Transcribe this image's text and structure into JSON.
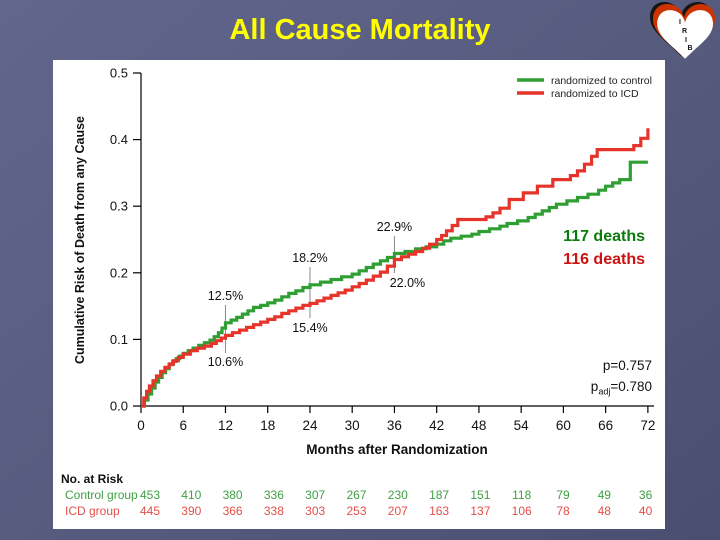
{
  "slide": {
    "title": "All Cause Mortality"
  },
  "logo": {
    "letters": [
      "I",
      "R",
      "I",
      "B"
    ]
  },
  "chart_data": {
    "type": "line",
    "subtype": "kaplan-meier-step",
    "title": "",
    "xlabel": "Months after Randomization",
    "ylabel": "Cumulative Risk of Death from any Cause",
    "xlim": [
      0,
      72
    ],
    "ylim": [
      0,
      0.5
    ],
    "xticks": [
      0,
      6,
      12,
      18,
      24,
      30,
      36,
      42,
      48,
      54,
      60,
      66,
      72
    ],
    "ytick_values": [
      0,
      0.1,
      0.2,
      0.3,
      0.4,
      0.5
    ],
    "ytick_labels": [
      "0.0",
      "0.1",
      "0.2",
      "0.3",
      "0.4",
      "0.5"
    ],
    "grid": false,
    "legend": {
      "position": "top-right",
      "items": [
        {
          "label": "randomized to control",
          "color": "#2f9e33"
        },
        {
          "label": "randomized to ICD",
          "color": "#e6342b"
        }
      ]
    },
    "series": [
      {
        "name": "randomized to control",
        "color": "#2f9e33",
        "points": [
          [
            0,
            0
          ],
          [
            0.5,
            0.009
          ],
          [
            1,
            0.018
          ],
          [
            1.5,
            0.027
          ],
          [
            2,
            0.036
          ],
          [
            2.5,
            0.043
          ],
          [
            3,
            0.05
          ],
          [
            3.5,
            0.056
          ],
          [
            4,
            0.062
          ],
          [
            4.5,
            0.067
          ],
          [
            5,
            0.071
          ],
          [
            5.5,
            0.075
          ],
          [
            6,
            0.079
          ],
          [
            6.7,
            0.083
          ],
          [
            7.4,
            0.087
          ],
          [
            8.2,
            0.091
          ],
          [
            9,
            0.095
          ],
          [
            9.8,
            0.099
          ],
          [
            10.4,
            0.104
          ],
          [
            11,
            0.11
          ],
          [
            11.5,
            0.117
          ],
          [
            12,
            0.125
          ],
          [
            12.8,
            0.129
          ],
          [
            13.6,
            0.133
          ],
          [
            14.4,
            0.138
          ],
          [
            15.2,
            0.143
          ],
          [
            16,
            0.148
          ],
          [
            17,
            0.151
          ],
          [
            18,
            0.155
          ],
          [
            19,
            0.159
          ],
          [
            20,
            0.164
          ],
          [
            21,
            0.169
          ],
          [
            22,
            0.173
          ],
          [
            23,
            0.178
          ],
          [
            24,
            0.182
          ],
          [
            25.5,
            0.186
          ],
          [
            27,
            0.19
          ],
          [
            28.5,
            0.194
          ],
          [
            30,
            0.198
          ],
          [
            31,
            0.203
          ],
          [
            32,
            0.208
          ],
          [
            33,
            0.213
          ],
          [
            34,
            0.218
          ],
          [
            35,
            0.223
          ],
          [
            36,
            0.229
          ],
          [
            37.5,
            0.232
          ],
          [
            39,
            0.236
          ],
          [
            40.5,
            0.239
          ],
          [
            42,
            0.243
          ],
          [
            43,
            0.248
          ],
          [
            44,
            0.252
          ],
          [
            45.5,
            0.255
          ],
          [
            47,
            0.258
          ],
          [
            48,
            0.262
          ],
          [
            49.5,
            0.266
          ],
          [
            51,
            0.27
          ],
          [
            52,
            0.274
          ],
          [
            53.5,
            0.278
          ],
          [
            55,
            0.283
          ],
          [
            56,
            0.288
          ],
          [
            57,
            0.293
          ],
          [
            58,
            0.298
          ],
          [
            59,
            0.303
          ],
          [
            60.5,
            0.308
          ],
          [
            62,
            0.313
          ],
          [
            63.5,
            0.318
          ],
          [
            65,
            0.324
          ],
          [
            66,
            0.33
          ],
          [
            67,
            0.335
          ],
          [
            68,
            0.34
          ],
          [
            69.5,
            0.366
          ],
          [
            72,
            0.366
          ]
        ]
      },
      {
        "name": "randomized to ICD",
        "color": "#e6342b",
        "points": [
          [
            0,
            0
          ],
          [
            0.4,
            0.012
          ],
          [
            0.8,
            0.022
          ],
          [
            1.2,
            0.03
          ],
          [
            1.7,
            0.038
          ],
          [
            2.2,
            0.045
          ],
          [
            2.8,
            0.052
          ],
          [
            3.4,
            0.058
          ],
          [
            4,
            0.063
          ],
          [
            4.6,
            0.068
          ],
          [
            5.3,
            0.073
          ],
          [
            6,
            0.078
          ],
          [
            7,
            0.083
          ],
          [
            8,
            0.087
          ],
          [
            9,
            0.09
          ],
          [
            10,
            0.094
          ],
          [
            10.7,
            0.098
          ],
          [
            11.4,
            0.102
          ],
          [
            12,
            0.106
          ],
          [
            13,
            0.11
          ],
          [
            14,
            0.114
          ],
          [
            15,
            0.118
          ],
          [
            16,
            0.122
          ],
          [
            17,
            0.126
          ],
          [
            18,
            0.13
          ],
          [
            19,
            0.134
          ],
          [
            20,
            0.139
          ],
          [
            21,
            0.143
          ],
          [
            22,
            0.147
          ],
          [
            23,
            0.151
          ],
          [
            24,
            0.154
          ],
          [
            25,
            0.158
          ],
          [
            26,
            0.162
          ],
          [
            27,
            0.166
          ],
          [
            28,
            0.17
          ],
          [
            29,
            0.174
          ],
          [
            30,
            0.179
          ],
          [
            31,
            0.184
          ],
          [
            32,
            0.189
          ],
          [
            33,
            0.195
          ],
          [
            34,
            0.201
          ],
          [
            35,
            0.21
          ],
          [
            36,
            0.22
          ],
          [
            37,
            0.224
          ],
          [
            38,
            0.228
          ],
          [
            39,
            0.232
          ],
          [
            40,
            0.237
          ],
          [
            41,
            0.243
          ],
          [
            42,
            0.25
          ],
          [
            42.7,
            0.256
          ],
          [
            43.4,
            0.263
          ],
          [
            44.2,
            0.271
          ],
          [
            45,
            0.28
          ],
          [
            49,
            0.284
          ],
          [
            50,
            0.29
          ],
          [
            51,
            0.297
          ],
          [
            52.3,
            0.31
          ],
          [
            54.3,
            0.32
          ],
          [
            56.3,
            0.33
          ],
          [
            58.5,
            0.34
          ],
          [
            61,
            0.346
          ],
          [
            62,
            0.353
          ],
          [
            63,
            0.363
          ],
          [
            64,
            0.375
          ],
          [
            64.8,
            0.385
          ],
          [
            70,
            0.391
          ],
          [
            71,
            0.402
          ],
          [
            72,
            0.417
          ]
        ]
      }
    ],
    "annotations": [
      {
        "month": 12,
        "top_label": "12.5%",
        "bottom_label": "10.6%"
      },
      {
        "month": 24,
        "top_label": "18.2%",
        "bottom_label": "15.4%"
      },
      {
        "month": 36,
        "top_label": "22.9%",
        "bottom_label": "22.0%"
      }
    ],
    "deaths": [
      {
        "text": "117 deaths",
        "color": "#0b7c0b"
      },
      {
        "text": "116 deaths",
        "color": "#cc1111"
      }
    ],
    "pvalues": {
      "p": "p=0.757",
      "adj_base": "p",
      "adj_sub": "adj",
      "adj_rest": "=0.780"
    }
  },
  "risk_table": {
    "title": "No. at Risk",
    "rows": [
      {
        "label": "Control group",
        "color": "#3fa045",
        "values": [
          "453",
          "410",
          "380",
          "336",
          "307",
          "267",
          "230",
          "187",
          "151",
          "118",
          "79",
          "49",
          "36"
        ]
      },
      {
        "label": "ICD group",
        "color": "#e25048",
        "values": [
          "445",
          "390",
          "366",
          "338",
          "303",
          "253",
          "207",
          "163",
          "137",
          "106",
          "78",
          "48",
          "40"
        ]
      }
    ]
  }
}
